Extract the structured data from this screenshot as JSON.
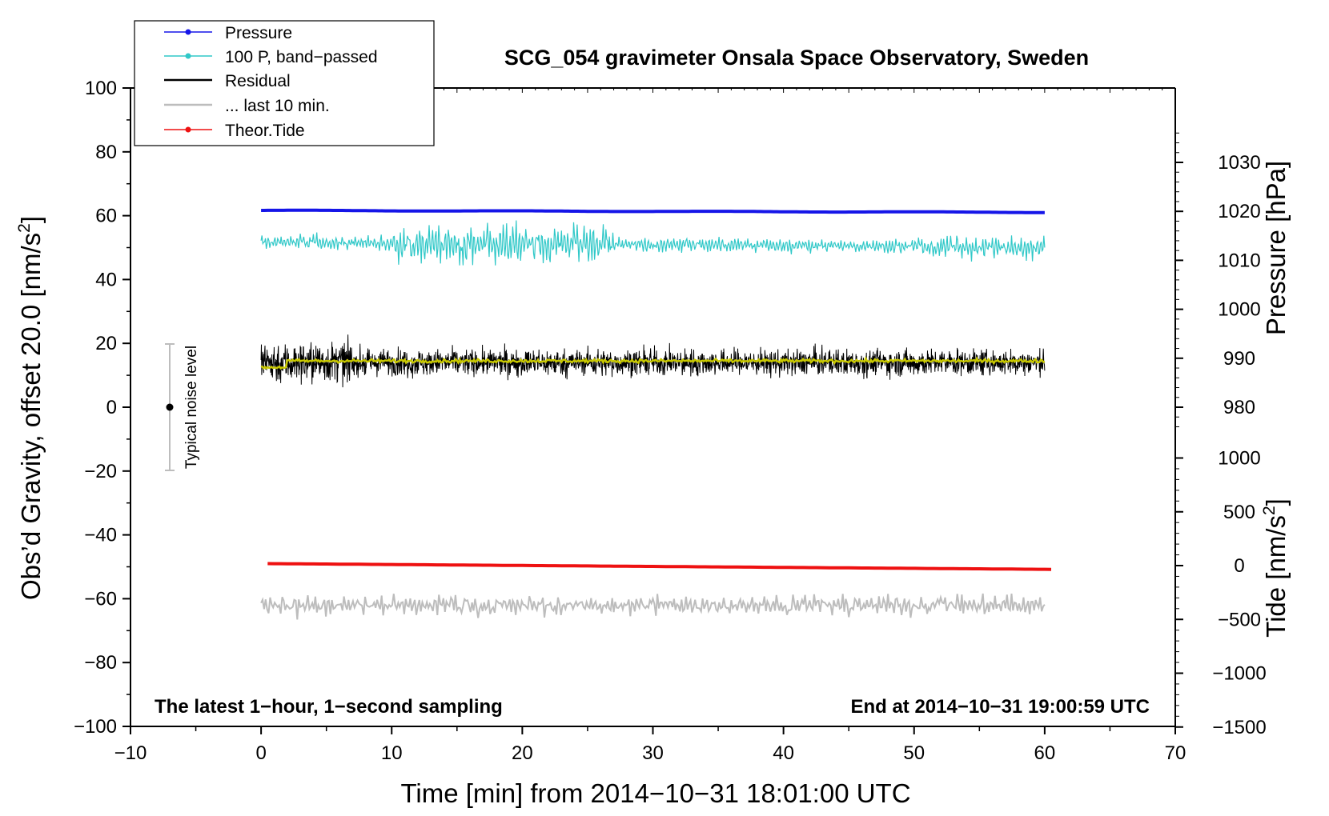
{
  "chart_data": {
    "type": "line",
    "title": "SCG_054 gravimeter Onsala Space Observatory, Sweden",
    "xlabel": "Time [min] from 2014−10−31 18:01:00 UTC",
    "ylabel": "Obs’d Gravity, offset 20.0 [nm/s",
    "ylabel_sup": "2",
    "ylabel_end": "]",
    "xlim": [
      -10,
      70
    ],
    "ylim": [
      -100,
      100
    ],
    "xticks": [
      -10,
      0,
      10,
      20,
      30,
      40,
      50,
      60,
      70
    ],
    "xtick_labels": [
      "−10",
      "0",
      "10",
      "20",
      "30",
      "40",
      "50",
      "60",
      "70"
    ],
    "yticks": [
      -100,
      -80,
      -60,
      -40,
      -20,
      0,
      20,
      40,
      60,
      80,
      100
    ],
    "ytick_labels": [
      "−100",
      "−80",
      "−60",
      "−40",
      "−20",
      "0",
      "20",
      "40",
      "60",
      "80",
      "100"
    ],
    "pressure_axis": {
      "label": "Pressure [hPa]",
      "ticks": [
        980,
        990,
        1000,
        1010,
        1020,
        1030
      ],
      "tick_labels": [
        "980",
        "990",
        "1000",
        "1010",
        "1020",
        "1030"
      ]
    },
    "tide_axis": {
      "label": "Tide [nm/s",
      "label_sup": "2",
      "label_end": "]",
      "ticks": [
        -1500,
        -1000,
        -500,
        0,
        500,
        1000
      ],
      "tick_labels": [
        "−1500",
        "−1000",
        "−500",
        "0",
        "500",
        "1000"
      ]
    },
    "series": [
      {
        "name": "Pressure",
        "color": "#1515e8",
        "style": "line-dot",
        "start_value": 1020.2,
        "end_value": 1019.8,
        "unit": "hPa"
      },
      {
        "name": "100 P, band−passed",
        "color": "#30c8c8",
        "style": "line-dot",
        "baseline": 50,
        "amplitude": 5
      },
      {
        "name": "Residual",
        "color": "#000000",
        "style": "line",
        "baseline": 14,
        "amplitude": 10
      },
      {
        "name": "... last 10 min.",
        "color": "#bdbdbd",
        "style": "line",
        "baseline": -62,
        "amplitude": 6
      },
      {
        "name": "Theor.Tide",
        "color": "#ee1111",
        "style": "line-dot",
        "start_value": -49,
        "end_value": -50.8
      }
    ],
    "smoothed_residual": {
      "color": "#c8c800",
      "baseline": 14.5
    },
    "noise_bar": {
      "label": "Typical noise level",
      "x": -7,
      "center": 0,
      "half_range": 20
    },
    "left_note": "The latest 1−hour, 1−second sampling",
    "right_note": "End at 2014−10−31 19:00:59 UTC"
  }
}
